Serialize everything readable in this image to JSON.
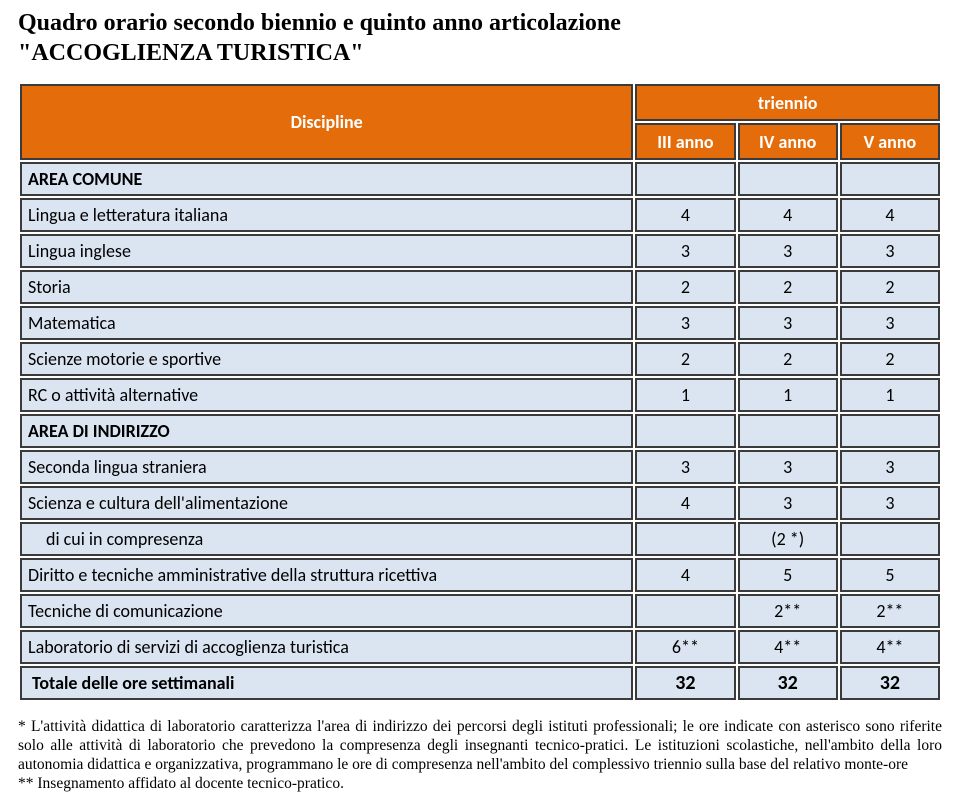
{
  "title_line1": "Quadro orario secondo biennio  e quinto anno articolazione",
  "title_line2": "\"ACCOGLIENZA TURISTICA\"",
  "header": {
    "discipline": "Discipline",
    "triennio": "triennio",
    "years": [
      "III anno",
      "IV anno",
      "V anno"
    ]
  },
  "rows": [
    {
      "type": "section",
      "label": "AREA COMUNE",
      "vals": [
        "",
        "",
        ""
      ]
    },
    {
      "type": "data",
      "label": "Lingua e letteratura italiana",
      "vals": [
        "4",
        "4",
        "4"
      ]
    },
    {
      "type": "data",
      "label": "Lingua inglese",
      "vals": [
        "3",
        "3",
        "3"
      ]
    },
    {
      "type": "data",
      "label": "Storia",
      "vals": [
        "2",
        "2",
        "2"
      ]
    },
    {
      "type": "data",
      "label": "Matematica",
      "vals": [
        "3",
        "3",
        "3"
      ]
    },
    {
      "type": "data",
      "label": "Scienze motorie e sportive",
      "vals": [
        "2",
        "2",
        "2"
      ]
    },
    {
      "type": "data",
      "label": "RC o attività alternative",
      "vals": [
        "1",
        "1",
        "1"
      ]
    },
    {
      "type": "section",
      "label": "AREA DI INDIRIZZO",
      "vals": [
        "",
        "",
        ""
      ]
    },
    {
      "type": "data",
      "label": "Seconda lingua straniera",
      "vals": [
        "3",
        "3",
        "3"
      ]
    },
    {
      "type": "data",
      "label": "Scienza e cultura dell'alimentazione",
      "vals": [
        "4",
        "3",
        "3"
      ]
    },
    {
      "type": "indent",
      "label": "di cui in compresenza",
      "vals": [
        "",
        "(2 *)",
        ""
      ]
    },
    {
      "type": "data",
      "label": "Diritto e tecniche amministrative della struttura ricettiva",
      "vals": [
        "4",
        "5",
        "5"
      ]
    },
    {
      "type": "data",
      "label": "Tecniche di comunicazione",
      "vals": [
        "",
        "2**",
        "2**"
      ]
    },
    {
      "type": "data",
      "label": "Laboratorio di servizi di accoglienza turistica",
      "vals": [
        "6**",
        "4**",
        "4**"
      ]
    }
  ],
  "total": {
    "label": "Totale delle ore settimanali",
    "vals": [
      "32",
      "32",
      "32"
    ]
  },
  "footnote1": "* L'attività didattica di laboratorio caratterizza l'area di indirizzo dei percorsi degli istituti professionali; le ore indicate con asterisco sono riferite solo alle attività di laboratorio che prevedono la compresenza degli insegnanti tecnico-pratici. Le istituzioni scolastiche, nell'ambito della loro autonomia didattica e organizzativa, programmano le ore di compresenza nell'ambito del complessivo triennio sulla base del relativo monte-ore",
  "footnote2": "** Insegnamento affidato al docente tecnico-pratico."
}
